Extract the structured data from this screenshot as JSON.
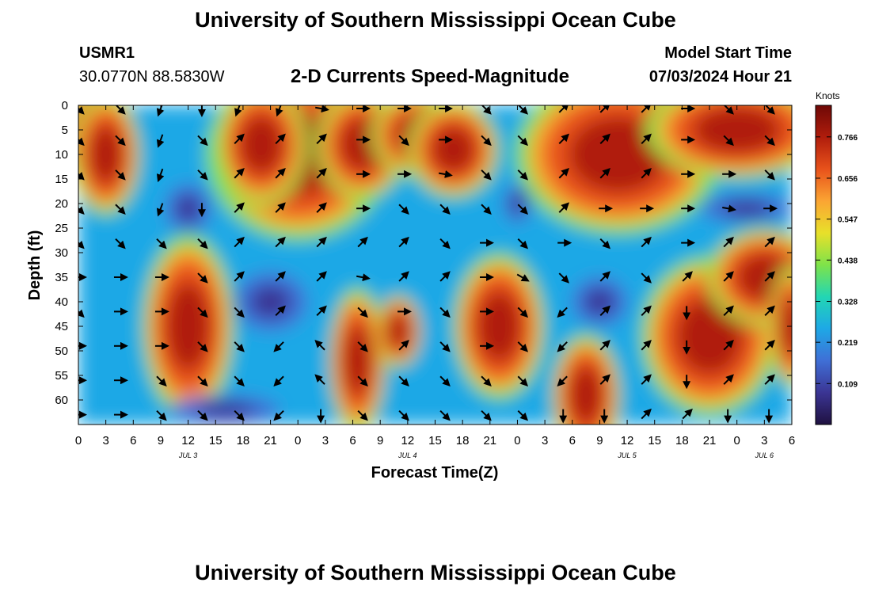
{
  "header": {
    "title": "University of Southern Mississippi Ocean Cube",
    "station_id": "USMR1",
    "station_coords": "30.0770N  88.5830W",
    "plot_title": "2-D Currents Speed-Magnitude",
    "model_start_label": "Model Start Time",
    "model_start_value": "07/03/2024 Hour 21"
  },
  "footer": {
    "title": "University of Southern Mississippi Ocean Cube"
  },
  "chart_data": {
    "type": "heatmap",
    "subtype": "time-depth section with current direction vectors",
    "xlabel": "Forecast Time(Z)",
    "ylabel": "Depth (ft)",
    "xlim_hours": [
      0,
      78
    ],
    "ylim": [
      0,
      65
    ],
    "y_inverted": true,
    "x_ticks": [
      "0",
      "3",
      "6",
      "9",
      "12",
      "15",
      "18",
      "21",
      "0",
      "3",
      "6",
      "9",
      "12",
      "15",
      "18",
      "21",
      "0",
      "3",
      "6",
      "9",
      "12",
      "15",
      "18",
      "21",
      "0",
      "3",
      "6"
    ],
    "y_ticks": [
      0,
      5,
      10,
      15,
      20,
      25,
      30,
      35,
      40,
      45,
      50,
      55,
      60
    ],
    "date_labels": [
      {
        "text": "JUL 3",
        "hour": 12
      },
      {
        "text": "JUL 4",
        "hour": 36
      },
      {
        "text": "JUL 5",
        "hour": 60
      },
      {
        "text": "JUL 6",
        "hour": 75
      }
    ],
    "colorbar": {
      "label": "Knots",
      "ticks": [
        0.766,
        0.656,
        0.547,
        0.438,
        0.328,
        0.219,
        0.109
      ],
      "min": 0.0,
      "max": 0.85,
      "colors": [
        "#1f1140",
        "#3b3594",
        "#3f6fd6",
        "#1ea8e6",
        "#22d6b4",
        "#7ee34a",
        "#e8e02a",
        "#fba533",
        "#e8521b",
        "#b01d0c",
        "#6e0806"
      ]
    },
    "speed_blobs": [
      {
        "hour": 1.5,
        "depth": 6,
        "r_hours": 3,
        "r_depth": 9,
        "value": 0.45
      },
      {
        "hour": 3,
        "depth": 10,
        "r_hours": 3,
        "r_depth": 10,
        "value": 0.35
      },
      {
        "hour": 12,
        "depth": 45,
        "r_hours": 4,
        "r_depth": 15,
        "value": 0.45
      },
      {
        "hour": 24,
        "depth": 10,
        "r_hours": 8,
        "r_depth": 14,
        "value": 0.55
      },
      {
        "hour": 31,
        "depth": 8,
        "r_hours": 4,
        "r_depth": 9,
        "value": 0.25
      },
      {
        "hour": 37,
        "depth": 6,
        "r_hours": 4,
        "r_depth": 7,
        "value": 0.2
      },
      {
        "hour": 41,
        "depth": 9,
        "r_hours": 4,
        "r_depth": 8,
        "value": 0.2
      },
      {
        "hour": 30.5,
        "depth": 52,
        "r_hours": 2.5,
        "r_depth": 12,
        "value": 0.5
      },
      {
        "hour": 35,
        "depth": 46,
        "r_hours": 2,
        "r_depth": 6,
        "value": 0.2
      },
      {
        "hour": 46,
        "depth": 45,
        "r_hours": 4,
        "r_depth": 12,
        "value": 0.5
      },
      {
        "hour": 59,
        "depth": 10,
        "r_hours": 9,
        "r_depth": 13,
        "value": 0.55
      },
      {
        "hour": 72,
        "depth": 5,
        "r_hours": 8,
        "r_depth": 8,
        "value": 0.3
      },
      {
        "hour": 69,
        "depth": 47,
        "r_hours": 6,
        "r_depth": 13,
        "value": 0.5
      },
      {
        "hour": 75,
        "depth": 35,
        "r_hours": 5,
        "r_depth": 8,
        "value": 0.35
      },
      {
        "hour": 78,
        "depth": 45,
        "r_hours": 2,
        "r_depth": 10,
        "value": 0.25
      },
      {
        "hour": 55.5,
        "depth": 59,
        "r_hours": 3,
        "r_depth": 10,
        "value": 0.35
      },
      {
        "hour": 20,
        "depth": 8,
        "r_hours": 4,
        "r_depth": 10,
        "value": 0.25
      }
    ],
    "calm_spots": [
      {
        "hour": 12,
        "depth": 21,
        "r_hours": 2.5,
        "r_depth": 5,
        "value": 0.12
      },
      {
        "hour": 21,
        "depth": 40,
        "r_hours": 4,
        "r_depth": 6,
        "value": 0.1
      },
      {
        "hour": 48,
        "depth": 20,
        "r_hours": 1.5,
        "r_depth": 4,
        "value": 0.12
      },
      {
        "hour": 57,
        "depth": 40,
        "r_hours": 3,
        "r_depth": 5,
        "value": 0.12
      },
      {
        "hour": 73,
        "depth": 21,
        "r_hours": 5,
        "r_depth": 3,
        "value": 0.1
      },
      {
        "hour": 16,
        "depth": 62,
        "r_hours": 6,
        "r_depth": 3,
        "value": 0.1
      }
    ],
    "arrow_grid": {
      "hours": [
        0,
        4.5,
        9,
        13.5,
        17.5,
        22,
        26.5,
        31,
        35.5,
        40,
        44.5,
        48.5,
        53,
        57.5,
        62,
        66.5,
        71,
        75.5
      ],
      "depths": [
        0,
        7,
        14,
        21,
        28,
        35,
        42,
        49,
        56,
        63
      ],
      "directions_deg": [
        [
          135,
          135,
          200,
          180,
          200,
          200,
          100,
          90,
          90,
          90,
          135,
          135,
          45,
          45,
          45,
          90,
          135,
          135
        ],
        [
          135,
          135,
          200,
          135,
          45,
          45,
          45,
          90,
          135,
          90,
          135,
          135,
          45,
          45,
          45,
          90,
          135,
          135
        ],
        [
          135,
          135,
          200,
          135,
          45,
          45,
          45,
          90,
          90,
          100,
          135,
          135,
          45,
          45,
          45,
          90,
          90,
          135
        ],
        [
          135,
          135,
          200,
          180,
          45,
          45,
          45,
          90,
          135,
          135,
          135,
          135,
          45,
          90,
          90,
          90,
          100,
          90
        ],
        [
          135,
          135,
          135,
          135,
          45,
          45,
          45,
          45,
          45,
          135,
          90,
          135,
          90,
          135,
          45,
          90,
          45,
          45
        ],
        [
          90,
          90,
          90,
          135,
          45,
          45,
          45,
          100,
          45,
          45,
          90,
          120,
          135,
          45,
          135,
          45,
          45,
          45
        ],
        [
          135,
          90,
          90,
          135,
          135,
          45,
          45,
          135,
          90,
          135,
          90,
          135,
          225,
          45,
          45,
          180,
          45,
          45
        ],
        [
          90,
          90,
          90,
          135,
          135,
          225,
          315,
          135,
          45,
          135,
          90,
          135,
          225,
          45,
          45,
          180,
          45,
          45
        ],
        [
          90,
          90,
          135,
          135,
          135,
          225,
          315,
          135,
          135,
          135,
          135,
          135,
          225,
          45,
          45,
          180,
          45,
          45
        ],
        [
          90,
          90,
          135,
          135,
          135,
          225,
          180,
          135,
          135,
          135,
          135,
          135,
          180,
          180,
          45,
          45,
          180,
          180
        ]
      ]
    }
  }
}
